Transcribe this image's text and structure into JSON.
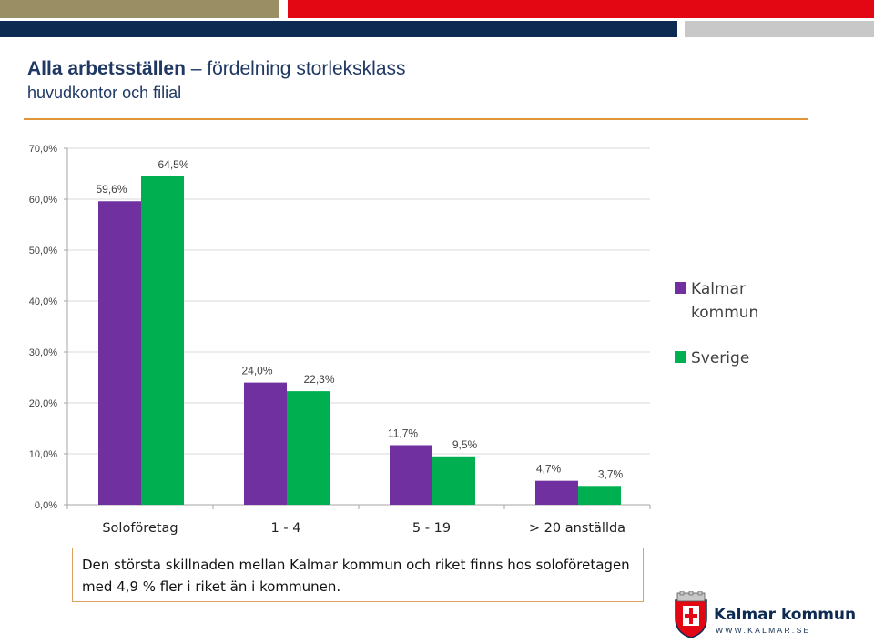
{
  "header": {
    "title_bold": "Alla arbetsställen",
    "title_rest": " – fördelning storleksklass",
    "subtitle": "huvudkontor och filial"
  },
  "colors": {
    "kalmar": "#7030a0",
    "sverige": "#00b050",
    "accent_rule": "#e0953a",
    "navy": "#0d2b52"
  },
  "chart_data": {
    "type": "bar",
    "categories": [
      "Soloföretag",
      "1 - 4",
      "5 - 19",
      "> 20 anställda"
    ],
    "series": [
      {
        "name": "Kalmar kommun",
        "values": [
          59.6,
          24.0,
          11.7,
          4.7
        ],
        "labels": [
          "59,6%",
          "24,0%",
          "11,7%",
          "4,7%"
        ]
      },
      {
        "name": "Sverige",
        "values": [
          64.5,
          22.3,
          9.5,
          3.7
        ],
        "labels": [
          "64,5%",
          "22,3%",
          "9,5%",
          "3,7%"
        ]
      }
    ],
    "ylim": [
      0,
      70
    ],
    "yticks": [
      0,
      10,
      20,
      30,
      40,
      50,
      60,
      70
    ],
    "ytick_labels": [
      "0,0%",
      "10,0%",
      "20,0%",
      "30,0%",
      "40,0%",
      "50,0%",
      "60,0%",
      "70,0%"
    ],
    "legend_position": "right",
    "legend_lines": [
      [
        "Kalmar",
        "kommun"
      ],
      [
        "Sverige"
      ]
    ],
    "grid": true
  },
  "note": {
    "line1": "Den största skillnaden mellan Kalmar kommun och riket finns hos soloföretagen",
    "line2": "med 4,9 % fler i riket än i kommunen."
  },
  "logo": {
    "name": "Kalmar kommun",
    "web": "WWW.KALMAR.SE",
    "shield_icon": "kalmar-coat-of-arms-icon"
  }
}
